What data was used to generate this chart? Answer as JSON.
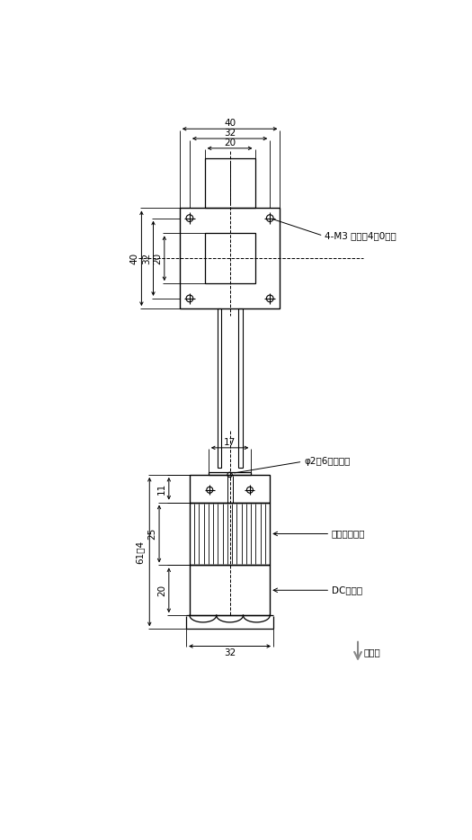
{
  "bg_color": "#ffffff",
  "line_color": "#000000",
  "fs": 7.5,
  "fs_label": 7.5,
  "labels": {
    "m3_note": "4-M3 深さて4．0ミリ",
    "temp_hole": "φ2．6温測用穴",
    "heatsink": "ヒートシンク",
    "dc_fan": "DCファン",
    "wind_dir": "風向き"
  },
  "dims_top": {
    "w40": "40",
    "w32": "32",
    "w20": "20",
    "h40": "40",
    "h32": "32",
    "h20": "20"
  },
  "dims_side": {
    "w17": "17",
    "h11": "11",
    "h25": "25",
    "h20": "20",
    "h614": "61．4",
    "w32": "32"
  }
}
